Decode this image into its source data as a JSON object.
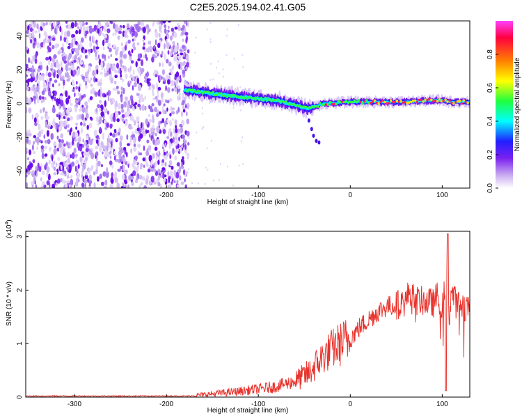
{
  "title": "C2E5.2025.194.02.41.G05",
  "chart_data": [
    {
      "type": "heatmap",
      "xlabel": "Height of straight line (km)",
      "ylabel": "Frequency (Hz)",
      "xlim": [
        -353,
        130
      ],
      "ylim": [
        -50,
        49
      ],
      "xticks": [
        -300,
        -200,
        -100,
        0,
        100
      ],
      "yticks": [
        -40,
        -20,
        0,
        20,
        40
      ],
      "colorbar": {
        "label": "Normalized spectral amplitude",
        "range": [
          0,
          1
        ],
        "ticks": [
          "0.0",
          "0.2",
          "0.4",
          "0.6",
          "0.8"
        ],
        "tick_values": [
          0,
          0.2,
          0.4,
          0.6,
          0.8
        ],
        "colors": [
          "#ffffff",
          "#c8a8f0",
          "#7a20f0",
          "#2020ff",
          "#00ffff",
          "#20ff40",
          "#ffff00",
          "#ff8000",
          "#ff0040",
          "#ff40ff"
        ]
      },
      "ridge": {
        "height_km": [
          -180,
          -150,
          -120,
          -100,
          -80,
          -60,
          -45,
          -30,
          0,
          30,
          60,
          90,
          100,
          110,
          130
        ],
        "frequency_hz": [
          8,
          6,
          4,
          3,
          2,
          -1,
          -3,
          0,
          1,
          1,
          1,
          2,
          2,
          1,
          1
        ]
      }
    },
    {
      "type": "line",
      "xlabel": "Height of straight line (km)",
      "ylabel": "SNR (10 * v/v)",
      "y_multiplier": "(x10^4)",
      "y_multiplier_base": "(x10",
      "y_multiplier_exp": "4",
      "xlim": [
        -353,
        130
      ],
      "ylim": [
        0,
        3.1
      ],
      "xticks": [
        -300,
        -200,
        -100,
        0,
        100
      ],
      "yticks": [
        0,
        1,
        2,
        3
      ],
      "series": [
        {
          "color": "#e8332c",
          "x": [
            -353,
            -300,
            -250,
            -200,
            -175,
            -150,
            -125,
            -100,
            -80,
            -60,
            -45,
            -30,
            -20,
            -10,
            0,
            10,
            20,
            30,
            40,
            50,
            60,
            65,
            70,
            80,
            90,
            95,
            100,
            105,
            108,
            110,
            115,
            120,
            125,
            130
          ],
          "y": [
            0.02,
            0.02,
            0.02,
            0.02,
            0.02,
            0.06,
            0.1,
            0.15,
            0.2,
            0.3,
            0.45,
            0.75,
            0.9,
            1.0,
            1.1,
            1.3,
            1.45,
            1.6,
            1.7,
            1.72,
            1.78,
            2.0,
            1.8,
            1.8,
            1.75,
            1.9,
            1.7,
            2.2,
            1.5,
            2.0,
            1.75,
            1.72,
            1.7,
            1.7
          ]
        }
      ]
    }
  ]
}
